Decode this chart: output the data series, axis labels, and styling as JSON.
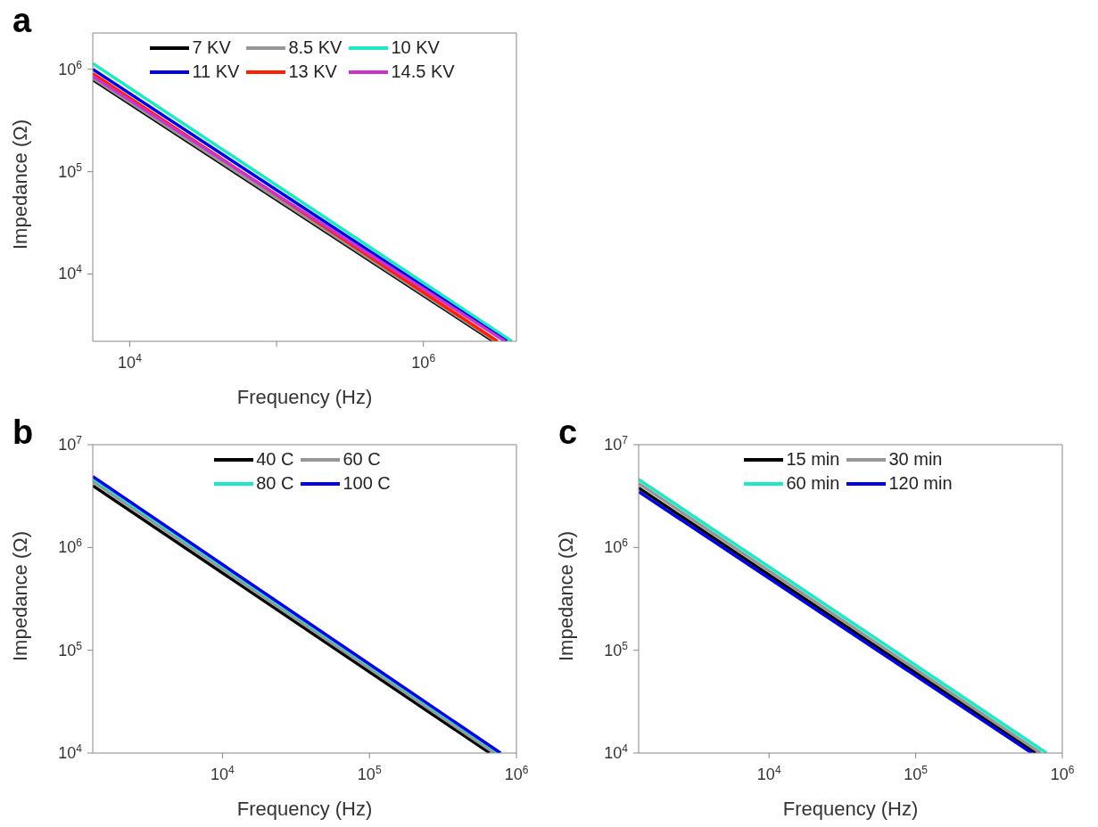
{
  "chart_data": [
    {
      "type": "line",
      "title": "a",
      "xlabel": "Frequency (Hz)",
      "ylabel": "Impedance (Ω)",
      "log": "xy",
      "legend": "top",
      "xlim": [
        5600,
        4300000
      ],
      "ylim": [
        2200,
        2260000
      ],
      "xticks": [
        {
          "value": 10000,
          "label": "10$^{4}$"
        },
        {
          "value": 100000,
          "label": null
        },
        {
          "value": 1000000,
          "label": "10$^{6}$"
        }
      ],
      "yticks": [
        {
          "value": 10000,
          "label": "10$^{4}$"
        },
        {
          "value": 100000,
          "label": "10$^{5}$"
        },
        {
          "value": 1000000,
          "label": "10$^{6}$"
        }
      ],
      "series": [
        {
          "name": "7 KV",
          "color": "#000000",
          "x": [
            5600,
            3000000
          ],
          "values": [
            790000,
            2200
          ]
        },
        {
          "name": "8.5 KV",
          "color": "#969696",
          "x": [
            5600,
            3100000
          ],
          "values": [
            820000,
            2200
          ]
        },
        {
          "name": "10 KV",
          "color": "#1de9c5",
          "x": [
            5600,
            4000000
          ],
          "values": [
            1140000,
            2200
          ]
        },
        {
          "name": "11 KV",
          "color": "#0000e6",
          "x": [
            5600,
            3700000
          ],
          "values": [
            1000000,
            2200
          ]
        },
        {
          "name": "13 KV",
          "color": "#ff2000",
          "x": [
            5600,
            3200000
          ],
          "values": [
            910000,
            2200
          ]
        },
        {
          "name": "14.5 KV",
          "color": "#cc33cc",
          "x": [
            5600,
            3600000
          ],
          "values": [
            850000,
            2200
          ]
        }
      ]
    },
    {
      "type": "line",
      "title": "b",
      "xlabel": "Frequency (Hz)",
      "ylabel": "Impedance (Ω)",
      "log": "xy",
      "legend": "top",
      "xlim": [
        1310,
        1000000
      ],
      "ylim": [
        10000,
        10000000
      ],
      "xticks": [
        {
          "value": 10000,
          "label": "10$^{4}$"
        },
        {
          "value": 100000,
          "label": "10$^{5}$"
        },
        {
          "value": 1000000,
          "label": "10$^{6}$"
        }
      ],
      "yticks": [
        {
          "value": 10000,
          "label": "10$^{4}$"
        },
        {
          "value": 100000,
          "label": "10$^{5}$"
        },
        {
          "value": 1000000,
          "label": "10$^{6}$"
        },
        {
          "value": 10000000,
          "label": "10$^{7}$"
        }
      ],
      "series": [
        {
          "name": "40 C",
          "color": "#000000",
          "x": [
            1310,
            660000
          ],
          "values": [
            4000000,
            10000
          ]
        },
        {
          "name": "60 C",
          "color": "#969696",
          "x": [
            1310,
            710000
          ],
          "values": [
            4400000,
            10000
          ]
        },
        {
          "name": "80 C",
          "color": "#1de9c5",
          "x": [
            1310,
            760000
          ],
          "values": [
            4700000,
            10000
          ]
        },
        {
          "name": "100 C",
          "color": "#0000e6",
          "x": [
            1310,
            780000
          ],
          "values": [
            4900000,
            10000
          ]
        }
      ]
    },
    {
      "type": "line",
      "title": "c",
      "xlabel": "Frequency (Hz)",
      "ylabel": "Impedance (Ω)",
      "log": "xy",
      "legend": "top",
      "xlim": [
        1290,
        1000000
      ],
      "ylim": [
        10000,
        10000000
      ],
      "xticks": [
        {
          "value": 10000,
          "label": "10$^{4}$"
        },
        {
          "value": 100000,
          "label": "10$^{5}$"
        },
        {
          "value": 1000000,
          "label": "10$^{6}$"
        }
      ],
      "yticks": [
        {
          "value": 10000,
          "label": "10$^{4}$"
        },
        {
          "value": 100000,
          "label": "10$^{5}$"
        },
        {
          "value": 1000000,
          "label": "10$^{6}$"
        },
        {
          "value": 10000000,
          "label": "10$^{7}$"
        }
      ],
      "series": [
        {
          "name": "15 min",
          "color": "#000000",
          "x": [
            1290,
            660000
          ],
          "values": [
            3800000,
            10000
          ]
        },
        {
          "name": "30 min",
          "color": "#969696",
          "x": [
            1290,
            710000
          ],
          "values": [
            4200000,
            10000
          ]
        },
        {
          "name": "60 min",
          "color": "#1de9c5",
          "x": [
            1290,
            780000
          ],
          "values": [
            4600000,
            10000
          ]
        },
        {
          "name": "120 min",
          "color": "#0000e6",
          "x": [
            1290,
            620000
          ],
          "values": [
            3500000,
            10000
          ]
        }
      ]
    }
  ]
}
